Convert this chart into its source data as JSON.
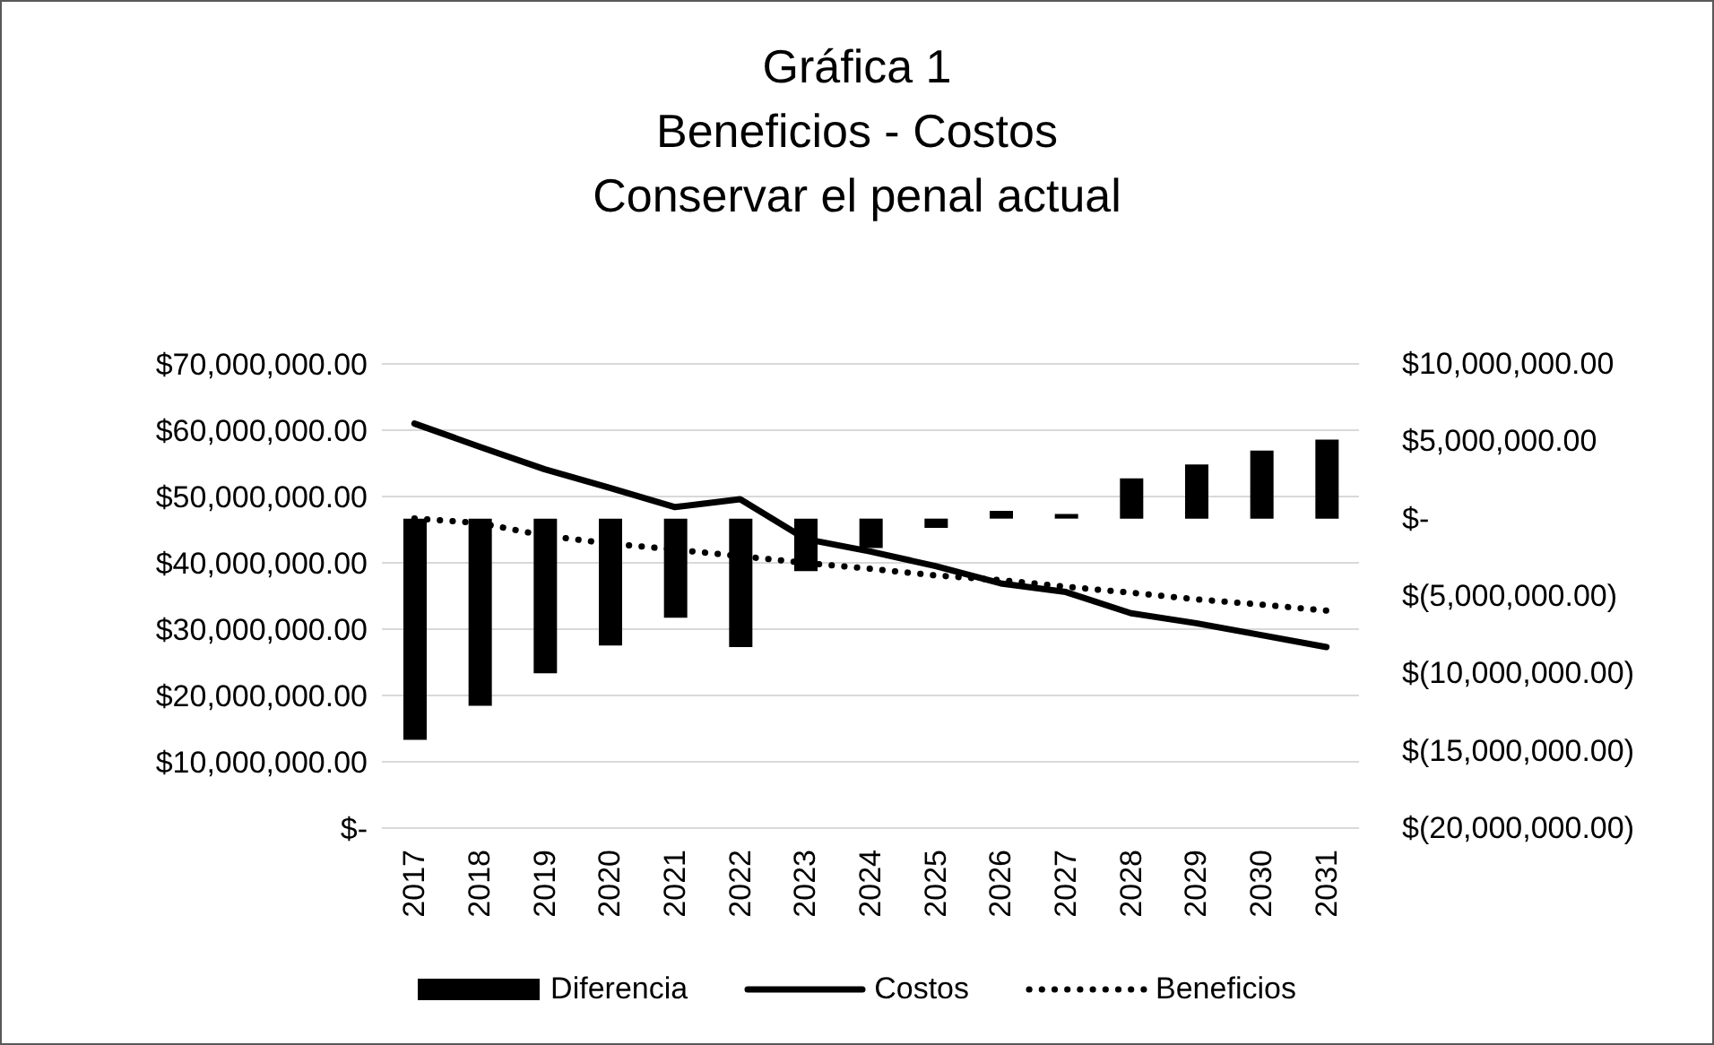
{
  "chart_data": {
    "type": "bar",
    "title": "Gráfica 1\nBeneficios - Costos\nConservar el penal actual",
    "categories": [
      "2017",
      "2018",
      "2019",
      "2020",
      "2021",
      "2022",
      "2023",
      "2024",
      "2025",
      "2026",
      "2027",
      "2028",
      "2029",
      "2030",
      "2031"
    ],
    "series": [
      {
        "name": "Diferencia",
        "axis": "y2",
        "color": "#000000",
        "values": [
          -14300000,
          -12100000,
          -10000000,
          -8200000,
          -6400000,
          -8300000,
          -3400000,
          -1900000,
          -600000,
          500000,
          300000,
          2600000,
          3500000,
          4400000,
          5100000
        ]
      },
      {
        "name": "Costos",
        "type": "line",
        "axis": "y",
        "color": "#000000",
        "line_style": "solid",
        "values": [
          61000000,
          57500000,
          54100000,
          51300000,
          48400000,
          49600000,
          43600000,
          41700000,
          39500000,
          36900000,
          35600000,
          32400000,
          30900000,
          29100000,
          27300000
        ]
      },
      {
        "name": "Beneficios",
        "type": "line",
        "axis": "y",
        "color": "#000000",
        "line_style": "dotted",
        "values": [
          46700000,
          46000000,
          44100000,
          42900000,
          42000000,
          41000000,
          40000000,
          39100000,
          38100000,
          37400000,
          36400000,
          35500000,
          34500000,
          33700000,
          32800000
        ]
      }
    ],
    "ylim": [
      0,
      70000000
    ],
    "yticks": [
      {
        "value": 0,
        "label": "$-"
      },
      {
        "value": 10000000,
        "label": "$10,000,000.00"
      },
      {
        "value": 20000000,
        "label": "$20,000,000.00"
      },
      {
        "value": 30000000,
        "label": "$30,000,000.00"
      },
      {
        "value": 40000000,
        "label": "$40,000,000.00"
      },
      {
        "value": 50000000,
        "label": "$50,000,000.00"
      },
      {
        "value": 60000000,
        "label": "$60,000,000.00"
      },
      {
        "value": 70000000,
        "label": "$70,000,000.00"
      }
    ],
    "y2lim": [
      -20000000,
      10000000
    ],
    "y2ticks": [
      {
        "value": -20000000,
        "label": "$(20,000,000.00)"
      },
      {
        "value": -15000000,
        "label": "$(15,000,000.00)"
      },
      {
        "value": -10000000,
        "label": "$(10,000,000.00)"
      },
      {
        "value": -5000000,
        "label": "$(5,000,000.00)"
      },
      {
        "value": 0,
        "label": "$-"
      },
      {
        "value": 5000000,
        "label": "$5,000,000.00"
      },
      {
        "value": 10000000,
        "label": "$10,000,000.00"
      }
    ],
    "grid": "y",
    "legend": "bottom",
    "marker": "none"
  }
}
